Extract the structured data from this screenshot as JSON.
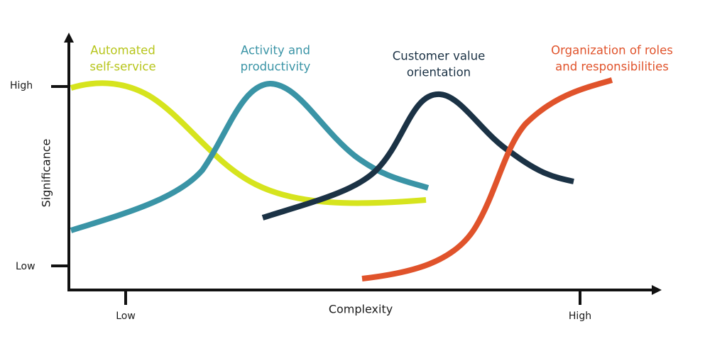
{
  "axes": {
    "x_label": "Complexity",
    "y_label": "Significance",
    "x_ticks": [
      "Low",
      "High"
    ],
    "y_ticks": [
      "High",
      "Low"
    ]
  },
  "curves": [
    {
      "label": [
        "Automated",
        "self-service"
      ]
    },
    {
      "label": [
        "Activity and",
        "productivity"
      ]
    },
    {
      "label": [
        "Customer value",
        "orientation"
      ]
    },
    {
      "label": [
        "Organization of roles",
        "and responsibilities"
      ]
    }
  ]
}
